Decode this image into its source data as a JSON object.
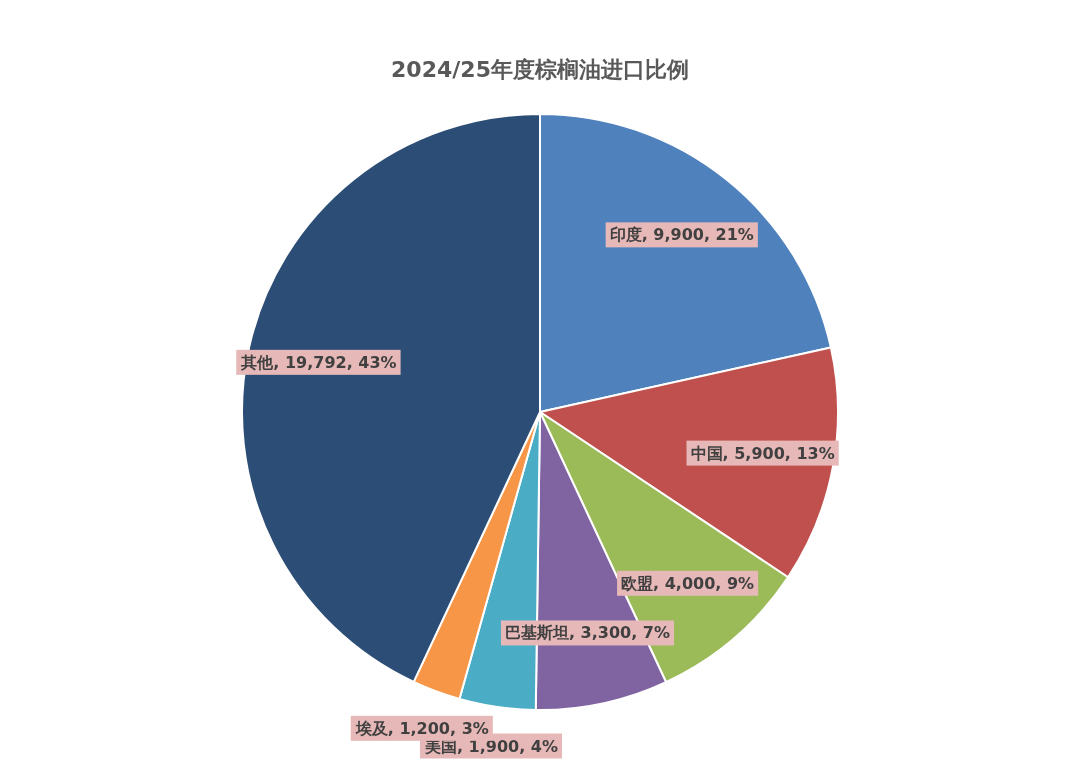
{
  "chart_data": {
    "type": "pie",
    "title": "2024/25年度棕榈油进口比例",
    "categories": [
      "印度",
      "中国",
      "欧盟",
      "巴基斯坦",
      "美国",
      "埃及",
      "其他"
    ],
    "values": [
      9900,
      5900,
      4000,
      3300,
      1900,
      1200,
      19792
    ],
    "value_labels": [
      "9,900, 21%",
      "5,900, 13%",
      "4,000, 9%",
      "3,300, 7%",
      "1,900, 4%",
      "1,200, 3%",
      "19,792, 43%"
    ],
    "colors": [
      "#4f81bd",
      "#c0504d",
      "#9bbb59",
      "#8064a2",
      "#4bacc6",
      "#f79646",
      "#2c4d75"
    ],
    "legend": false
  }
}
